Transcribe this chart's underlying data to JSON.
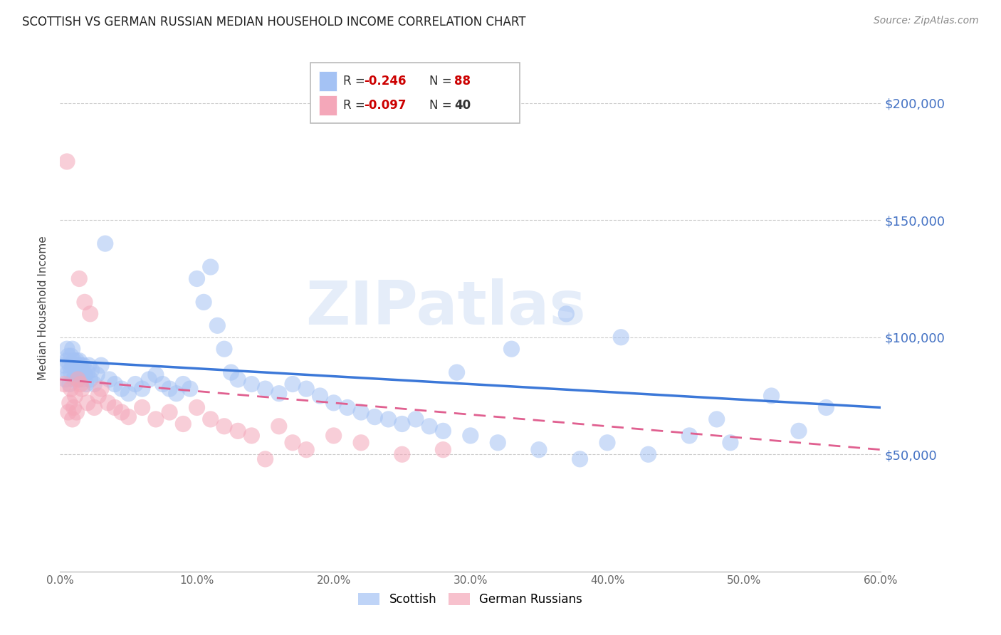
{
  "title": "SCOTTISH VS GERMAN RUSSIAN MEDIAN HOUSEHOLD INCOME CORRELATION CHART",
  "source": "Source: ZipAtlas.com",
  "ylabel": "Median Household Income",
  "yticks": [
    0,
    50000,
    100000,
    150000,
    200000
  ],
  "ytick_labels": [
    "",
    "$50,000",
    "$100,000",
    "$150,000",
    "$200,000"
  ],
  "xlim": [
    0.0,
    0.6
  ],
  "ylim": [
    15000,
    225000
  ],
  "xticks": [
    0.0,
    0.1,
    0.2,
    0.3,
    0.4,
    0.5,
    0.6
  ],
  "xtick_labels": [
    "0.0%",
    "10.0%",
    "20.0%",
    "30.0%",
    "40.0%",
    "50.0%",
    "60.0%"
  ],
  "legend_r1": "R = -0.246",
  "legend_n1": "N = 88",
  "legend_r2": "R = -0.097",
  "legend_n2": "N = 40",
  "watermark": "ZIPatlas",
  "blue_color": "#a4c2f4",
  "pink_color": "#f4a7b9",
  "trend_blue": "#3c78d8",
  "trend_pink": "#e06090",
  "blue_scatter_x": [
    0.003,
    0.004,
    0.005,
    0.005,
    0.006,
    0.006,
    0.007,
    0.007,
    0.008,
    0.008,
    0.009,
    0.009,
    0.01,
    0.01,
    0.011,
    0.011,
    0.012,
    0.012,
    0.013,
    0.013,
    0.014,
    0.014,
    0.015,
    0.015,
    0.016,
    0.016,
    0.017,
    0.018,
    0.019,
    0.02,
    0.021,
    0.022,
    0.023,
    0.025,
    0.027,
    0.03,
    0.033,
    0.036,
    0.04,
    0.045,
    0.05,
    0.055,
    0.06,
    0.065,
    0.07,
    0.075,
    0.08,
    0.085,
    0.09,
    0.095,
    0.1,
    0.105,
    0.11,
    0.115,
    0.12,
    0.125,
    0.13,
    0.14,
    0.15,
    0.16,
    0.17,
    0.18,
    0.19,
    0.2,
    0.21,
    0.22,
    0.23,
    0.24,
    0.25,
    0.26,
    0.27,
    0.28,
    0.3,
    0.32,
    0.35,
    0.38,
    0.4,
    0.43,
    0.46,
    0.49,
    0.52,
    0.54,
    0.56,
    0.48,
    0.41,
    0.37,
    0.33,
    0.29
  ],
  "blue_scatter_y": [
    88000,
    82000,
    90000,
    95000,
    85000,
    92000,
    88000,
    80000,
    85000,
    92000,
    88000,
    95000,
    82000,
    90000,
    88000,
    84000,
    90000,
    86000,
    88000,
    82000,
    86000,
    90000,
    84000,
    88000,
    82000,
    86000,
    88000,
    84000,
    80000,
    85000,
    88000,
    82000,
    86000,
    80000,
    84000,
    88000,
    140000,
    82000,
    80000,
    78000,
    76000,
    80000,
    78000,
    82000,
    84000,
    80000,
    78000,
    76000,
    80000,
    78000,
    125000,
    115000,
    130000,
    105000,
    95000,
    85000,
    82000,
    80000,
    78000,
    76000,
    80000,
    78000,
    75000,
    72000,
    70000,
    68000,
    66000,
    65000,
    63000,
    65000,
    62000,
    60000,
    58000,
    55000,
    52000,
    48000,
    55000,
    50000,
    58000,
    55000,
    75000,
    60000,
    70000,
    65000,
    100000,
    110000,
    95000,
    85000
  ],
  "pink_scatter_x": [
    0.003,
    0.005,
    0.006,
    0.007,
    0.008,
    0.009,
    0.01,
    0.011,
    0.012,
    0.013,
    0.014,
    0.015,
    0.016,
    0.018,
    0.02,
    0.022,
    0.025,
    0.028,
    0.03,
    0.035,
    0.04,
    0.045,
    0.05,
    0.06,
    0.07,
    0.08,
    0.09,
    0.1,
    0.11,
    0.12,
    0.13,
    0.14,
    0.15,
    0.16,
    0.17,
    0.18,
    0.2,
    0.22,
    0.25,
    0.28
  ],
  "pink_scatter_y": [
    80000,
    175000,
    68000,
    72000,
    78000,
    65000,
    70000,
    75000,
    68000,
    82000,
    125000,
    80000,
    78000,
    115000,
    72000,
    110000,
    70000,
    75000,
    78000,
    72000,
    70000,
    68000,
    66000,
    70000,
    65000,
    68000,
    63000,
    70000,
    65000,
    62000,
    60000,
    58000,
    48000,
    62000,
    55000,
    52000,
    58000,
    55000,
    50000,
    52000
  ],
  "blue_trend_x0": 0.0,
  "blue_trend_x1": 0.6,
  "blue_trend_y0": 90000,
  "blue_trend_y1": 70000,
  "pink_trend_x0": 0.0,
  "pink_trend_x1": 0.6,
  "pink_trend_y0": 82000,
  "pink_trend_y1": 52000
}
